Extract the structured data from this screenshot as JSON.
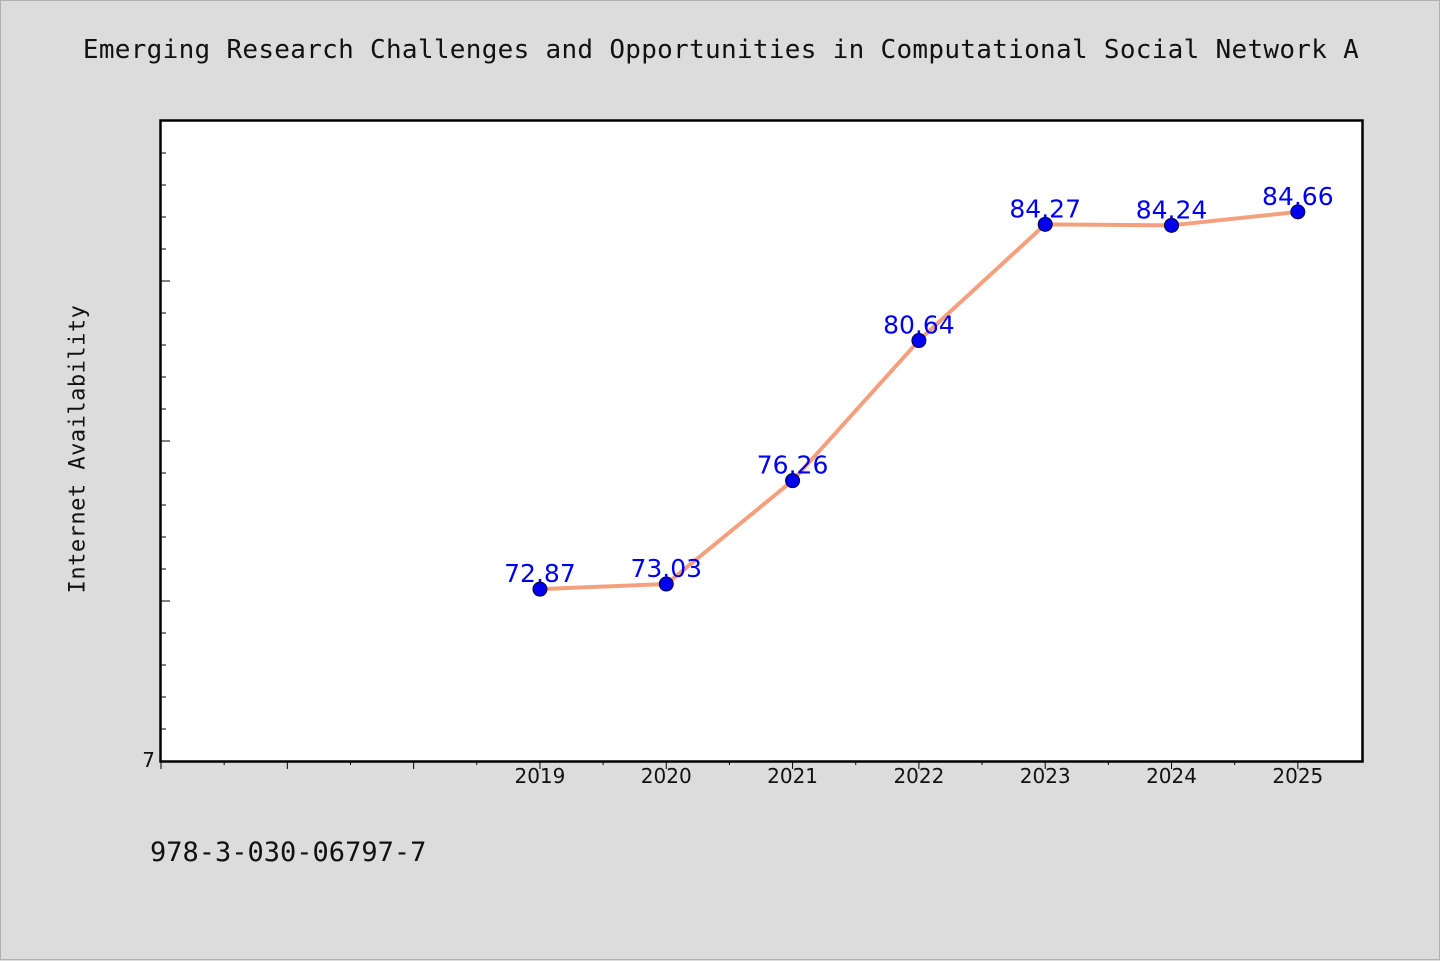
{
  "chart_data": {
    "type": "line",
    "title": "Emerging Research Challenges and Opportunities in Computational Social Network A",
    "xlabel": "",
    "ylabel": "Internet Availability",
    "x_tick_labels": [
      "2019",
      "2020",
      "2021",
      "2022",
      "2023",
      "2024",
      "2025"
    ],
    "y_tick_labels": [
      "7"
    ],
    "x_range": [
      2016,
      2025.5
    ],
    "ylim": [
      67.5,
      87.5
    ],
    "grid": false,
    "legend": "none",
    "series": [
      {
        "x": [
          2019,
          2020,
          2021,
          2022,
          2023,
          2024,
          2025
        ],
        "values": [
          72.87,
          73.03,
          76.26,
          80.64,
          84.27,
          84.24,
          84.66
        ],
        "labels": [
          "72.87",
          "73.03",
          "76.26",
          "80.64",
          "84.27",
          "84.24",
          "84.66"
        ],
        "line_color": "#f4a07e",
        "marker_color": "#0000ee",
        "label_color": "#0000ee"
      }
    ]
  },
  "footer": {
    "isbn": "978-3-030-06797-7"
  }
}
